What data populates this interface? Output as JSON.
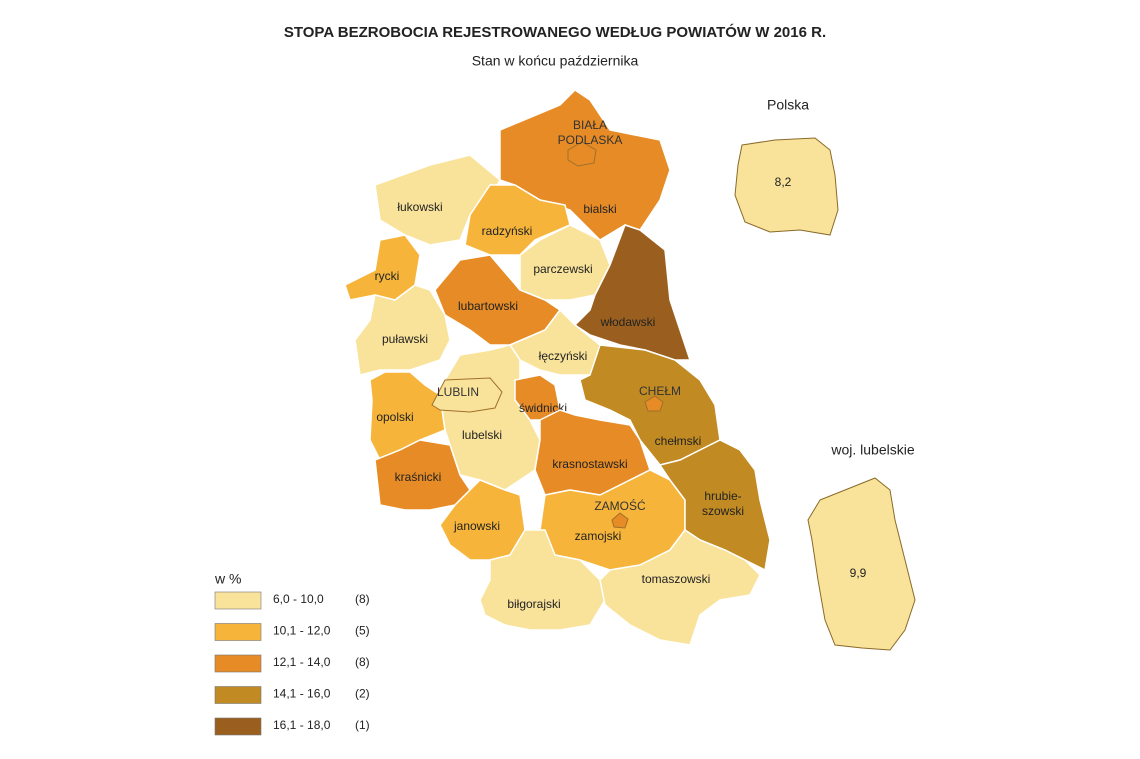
{
  "title": "STOPA BEZROBOCIA REJESTROWANEGO WEDŁUG POWIATÓW W 2016 R.",
  "subtitle": "Stan w końcu października",
  "regions": [
    {
      "name": "bialski",
      "color": "#e68b25"
    },
    {
      "name": "łukowski",
      "color": "#f9e39a"
    },
    {
      "name": "radzyński",
      "color": "#f6b53a"
    },
    {
      "name": "rycki",
      "color": "#f6b53a"
    },
    {
      "name": "parczewski",
      "color": "#f9e39a"
    },
    {
      "name": "włodawski",
      "color": "#9a5f1e"
    },
    {
      "name": "lubartowski",
      "color": "#e68b25"
    },
    {
      "name": "puławski",
      "color": "#f9e39a"
    },
    {
      "name": "łęczyński",
      "color": "#f9e39a"
    },
    {
      "name": "chełmski",
      "color": "#c18a23"
    },
    {
      "name": "opolski",
      "color": "#f6b53a"
    },
    {
      "name": "lubelski",
      "color": "#f9e39a"
    },
    {
      "name": "świdnicki",
      "color": "#e68b25"
    },
    {
      "name": "krasnostawski",
      "color": "#e68b25"
    },
    {
      "name": "kraśnicki",
      "color": "#e68b25"
    },
    {
      "name": "janowski",
      "color": "#f6b53a"
    },
    {
      "name": "zamojski",
      "color": "#f6b53a"
    },
    {
      "name": "hrubieszowski",
      "label": [
        "hrubie-",
        "szowski"
      ],
      "color": "#c18a23"
    },
    {
      "name": "biłgorajski",
      "color": "#f9e39a"
    },
    {
      "name": "tomaszowski",
      "color": "#f9e39a"
    }
  ],
  "cities": [
    {
      "label": [
        "BIAŁA",
        "PODLASKA"
      ],
      "color": "#e68b25"
    },
    {
      "label": [
        "CHEŁM"
      ],
      "color": "#e68b25"
    },
    {
      "label": [
        "ZAMOŚĆ"
      ],
      "color": "#e68b25"
    },
    {
      "label": [
        "LUBLIN"
      ],
      "color": "#f9e39a"
    }
  ],
  "insets": [
    {
      "title": "Polska",
      "value": "8,2",
      "color": "#f9e39a"
    },
    {
      "title": "woj. lubelskie",
      "value": "9,9",
      "color": "#f9e39a"
    }
  ],
  "legend": {
    "title": "w %",
    "items": [
      {
        "range": "6,0 - 10,0",
        "count": "(8)",
        "color": "#f9e39a"
      },
      {
        "range": "10,1 - 12,0",
        "count": "(5)",
        "color": "#f6b53a"
      },
      {
        "range": "12,1 - 14,0",
        "count": "(8)",
        "color": "#e68b25"
      },
      {
        "range": "14,1 - 16,0",
        "count": "(2)",
        "color": "#c18a23"
      },
      {
        "range": "16,1 - 18,0",
        "count": "(1)",
        "color": "#9a5f1e"
      }
    ]
  }
}
